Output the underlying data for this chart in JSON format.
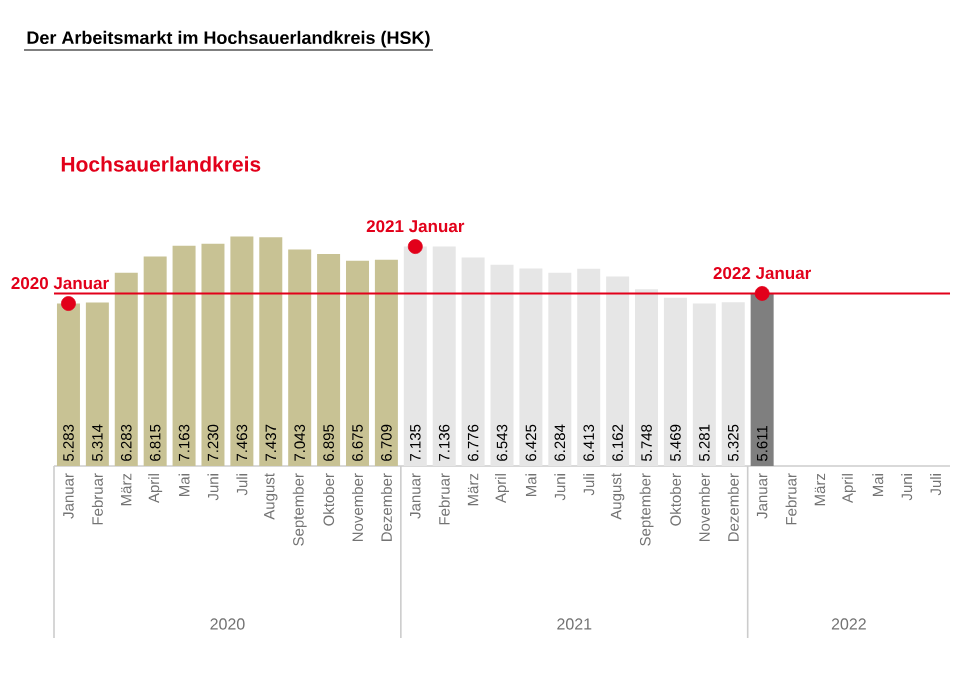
{
  "chart_data": {
    "type": "bar",
    "title": "Der Arbeitsmarkt im Hochsauerlandkreis (HSK)",
    "subtitle": "Hochsauerlandkreis",
    "categories": [
      "Januar",
      "Februar",
      "März",
      "April",
      "Mai",
      "Juni",
      "Juli",
      "August",
      "September",
      "Oktober",
      "November",
      "Dezember",
      "Januar",
      "Februar",
      "März",
      "April",
      "Mai",
      "Juni",
      "Juli",
      "August",
      "September",
      "Oktober",
      "November",
      "Dezember",
      "Januar",
      "Februar",
      "März",
      "April",
      "Mai",
      "Juni",
      "Juli"
    ],
    "series": [
      {
        "values": [
          5283,
          5314,
          6283,
          6815,
          7163,
          7230,
          7463,
          7437,
          7043,
          6895,
          6675,
          6709,
          7135,
          7136,
          6776,
          6543,
          6425,
          6284,
          6413,
          6162,
          5748,
          5469,
          5281,
          5325,
          5611,
          null,
          null,
          null,
          null,
          null,
          null
        ],
        "colors": [
          "#c8c294",
          "#c8c294",
          "#c8c294",
          "#c8c294",
          "#c8c294",
          "#c8c294",
          "#c8c294",
          "#c8c294",
          "#c8c294",
          "#c8c294",
          "#c8c294",
          "#c8c294",
          "#e6e6e6",
          "#e6e6e6",
          "#e6e6e6",
          "#e6e6e6",
          "#e6e6e6",
          "#e6e6e6",
          "#e6e6e6",
          "#e6e6e6",
          "#e6e6e6",
          "#e6e6e6",
          "#e6e6e6",
          "#e6e6e6",
          "#7f7f7f",
          null,
          null,
          null,
          null,
          null,
          null
        ],
        "value_labels": [
          "5.283",
          "5.314",
          "6.283",
          "6.815",
          "7.163",
          "7.230",
          "7.463",
          "7.437",
          "7.043",
          "6.895",
          "6.675",
          "6.709",
          "7.135",
          "7.136",
          "6.776",
          "6.543",
          "6.425",
          "6.284",
          "6.413",
          "6.162",
          "5.748",
          "5.469",
          "5.281",
          "5.325",
          "5.611",
          null,
          null,
          null,
          null,
          null,
          null
        ]
      },
      {
        "type": "scatter",
        "color": "#e2001a",
        "values": [
          5283,
          null,
          null,
          null,
          null,
          null,
          null,
          null,
          null,
          null,
          null,
          null,
          7135,
          null,
          null,
          null,
          null,
          null,
          null,
          null,
          null,
          null,
          null,
          null,
          5611,
          null,
          null,
          null,
          null,
          null,
          null
        ]
      }
    ],
    "ref_lines": [
      {
        "axis": "y",
        "value": 5611,
        "color": "#e2001a"
      }
    ],
    "annotations": [
      "2020 Januar",
      "2021 Januar",
      "2022 Januar",
      "2020",
      "2021",
      "2022"
    ]
  }
}
